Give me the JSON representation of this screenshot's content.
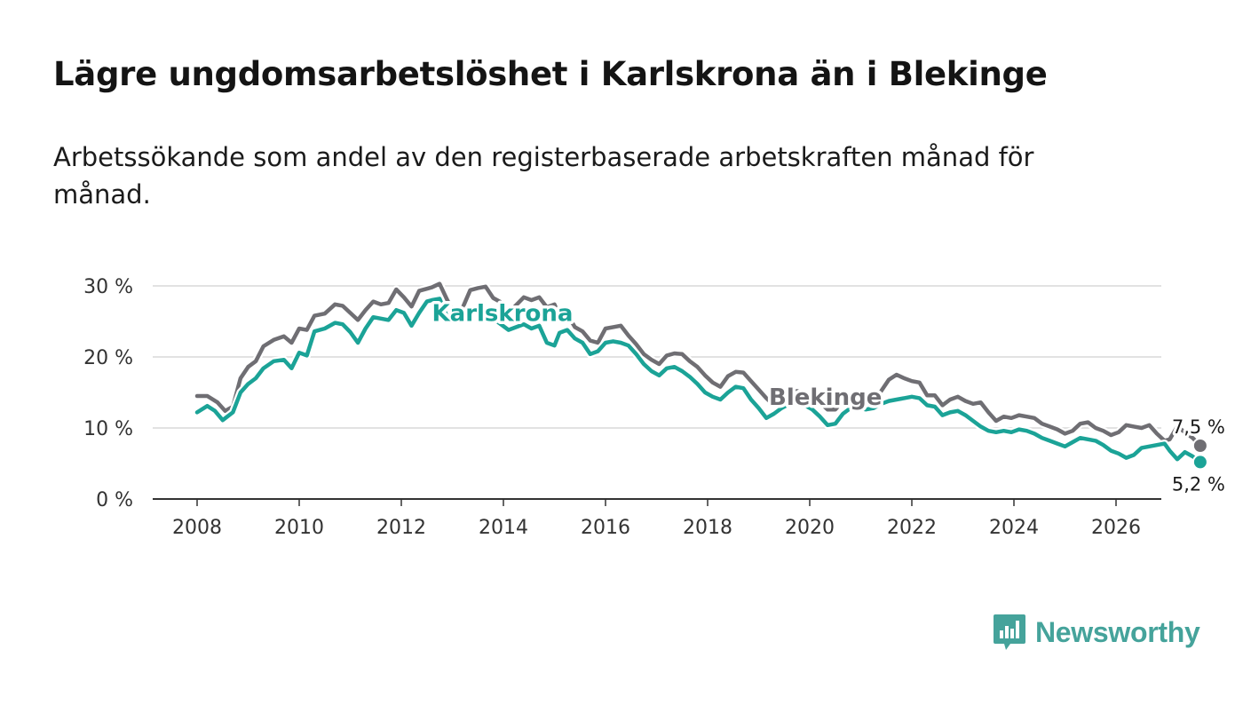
{
  "title": "Lägre ungdomsarbetslöshet i Karlskrona än i Blekinge",
  "subtitle": "Arbetssökande som andel av den registerbaserade arbetskraften månad för månad.",
  "brand": {
    "name": "Newsworthy",
    "icon": "newsworthy-logo-icon",
    "color": "#45a39b"
  },
  "chart_data": {
    "type": "line",
    "y_ticks": [
      "0 %",
      "10 %",
      "20 %",
      "30 %"
    ],
    "y_tick_values": [
      0,
      10,
      20,
      30
    ],
    "x_ticks": [
      "2008",
      "2010",
      "2012",
      "2014",
      "2016",
      "2018",
      "2020",
      "2022",
      "2024",
      "2026"
    ],
    "x_tick_values": [
      2008,
      2010,
      2012,
      2014,
      2016,
      2018,
      2020,
      2022,
      2024,
      2026
    ],
    "xlim": [
      2007.1,
      2027.1
    ],
    "ylim": [
      0,
      30
    ],
    "grid": true,
    "series": [
      {
        "name": "Blekinge",
        "color": "#6f6e73",
        "label": "Blekinge",
        "end_label": "7,5 %",
        "points": [
          [
            2008.0,
            14.5
          ],
          [
            2008.2,
            14.5
          ],
          [
            2008.4,
            13.6
          ],
          [
            2008.55,
            12.4
          ],
          [
            2008.7,
            13.0
          ],
          [
            2008.85,
            17.0
          ],
          [
            2009.0,
            18.6
          ],
          [
            2009.15,
            19.4
          ],
          [
            2009.3,
            21.5
          ],
          [
            2009.5,
            22.4
          ],
          [
            2009.7,
            22.9
          ],
          [
            2009.85,
            22.0
          ],
          [
            2010.0,
            24.0
          ],
          [
            2010.15,
            23.8
          ],
          [
            2010.3,
            25.8
          ],
          [
            2010.5,
            26.1
          ],
          [
            2010.7,
            27.4
          ],
          [
            2010.85,
            27.2
          ],
          [
            2011.0,
            26.2
          ],
          [
            2011.15,
            25.2
          ],
          [
            2011.3,
            26.6
          ],
          [
            2011.45,
            27.8
          ],
          [
            2011.6,
            27.4
          ],
          [
            2011.75,
            27.6
          ],
          [
            2011.9,
            29.5
          ],
          [
            2012.05,
            28.4
          ],
          [
            2012.2,
            27.1
          ],
          [
            2012.35,
            29.3
          ],
          [
            2012.5,
            29.6
          ],
          [
            2012.6,
            29.8
          ],
          [
            2012.75,
            30.3
          ],
          [
            2012.9,
            28.0
          ],
          [
            2013.05,
            26.0
          ],
          [
            2013.2,
            26.9
          ],
          [
            2013.35,
            29.4
          ],
          [
            2013.5,
            29.7
          ],
          [
            2013.65,
            29.9
          ],
          [
            2013.8,
            28.3
          ],
          [
            2013.95,
            27.7
          ],
          [
            2014.1,
            26.2
          ],
          [
            2014.25,
            27.3
          ],
          [
            2014.4,
            28.4
          ],
          [
            2014.55,
            28.0
          ],
          [
            2014.7,
            28.4
          ],
          [
            2014.85,
            27.0
          ],
          [
            2015.0,
            27.4
          ],
          [
            2015.1,
            25.7
          ],
          [
            2015.25,
            26.0
          ],
          [
            2015.4,
            24.2
          ],
          [
            2015.55,
            23.6
          ],
          [
            2015.7,
            22.3
          ],
          [
            2015.85,
            22.0
          ],
          [
            2016.0,
            24.0
          ],
          [
            2016.15,
            24.2
          ],
          [
            2016.3,
            24.4
          ],
          [
            2016.45,
            23.0
          ],
          [
            2016.6,
            21.8
          ],
          [
            2016.75,
            20.4
          ],
          [
            2016.9,
            19.6
          ],
          [
            2017.05,
            19.0
          ],
          [
            2017.2,
            20.2
          ],
          [
            2017.35,
            20.5
          ],
          [
            2017.5,
            20.4
          ],
          [
            2017.65,
            19.4
          ],
          [
            2017.8,
            18.6
          ],
          [
            2017.95,
            17.4
          ],
          [
            2018.1,
            16.4
          ],
          [
            2018.25,
            15.8
          ],
          [
            2018.4,
            17.3
          ],
          [
            2018.55,
            17.9
          ],
          [
            2018.7,
            17.8
          ],
          [
            2018.85,
            16.6
          ],
          [
            2019.0,
            15.4
          ],
          [
            2019.15,
            14.2
          ],
          [
            2019.3,
            13.2
          ],
          [
            2019.45,
            14.1
          ],
          [
            2019.6,
            15.0
          ],
          [
            2019.75,
            15.2
          ],
          [
            2019.9,
            14.8
          ],
          [
            2020.05,
            14.4
          ],
          [
            2020.2,
            13.6
          ],
          [
            2020.35,
            12.6
          ],
          [
            2020.5,
            12.6
          ],
          [
            2020.65,
            13.8
          ],
          [
            2020.8,
            14.6
          ],
          [
            2020.95,
            14.4
          ],
          [
            2021.1,
            14.6
          ],
          [
            2021.25,
            14.0
          ],
          [
            2021.4,
            15.2
          ],
          [
            2021.55,
            16.8
          ],
          [
            2021.7,
            17.5
          ],
          [
            2021.85,
            17.0
          ],
          [
            2022.0,
            16.6
          ],
          [
            2022.15,
            16.4
          ],
          [
            2022.3,
            14.6
          ],
          [
            2022.45,
            14.6
          ],
          [
            2022.6,
            13.2
          ],
          [
            2022.75,
            14.0
          ],
          [
            2022.9,
            14.4
          ],
          [
            2023.05,
            13.8
          ],
          [
            2023.2,
            13.4
          ],
          [
            2023.35,
            13.6
          ],
          [
            2023.5,
            12.2
          ],
          [
            2023.65,
            11.0
          ],
          [
            2023.8,
            11.6
          ],
          [
            2023.95,
            11.4
          ],
          [
            2024.1,
            11.8
          ],
          [
            2024.25,
            11.6
          ],
          [
            2024.4,
            11.4
          ],
          [
            2024.55,
            10.6
          ],
          [
            2024.7,
            10.2
          ],
          [
            2024.85,
            9.8
          ],
          [
            2025.0,
            9.2
          ],
          [
            2025.15,
            9.6
          ],
          [
            2025.3,
            10.6
          ],
          [
            2025.45,
            10.8
          ],
          [
            2025.6,
            10.0
          ],
          [
            2025.75,
            9.6
          ],
          [
            2025.9,
            9.0
          ],
          [
            2026.05,
            9.4
          ],
          [
            2026.2,
            10.4
          ],
          [
            2026.35,
            10.2
          ],
          [
            2026.5,
            10.0
          ],
          [
            2026.65,
            10.4
          ],
          [
            2026.8,
            9.2
          ],
          [
            2026.95,
            8.2
          ],
          [
            2027.05,
            8.4
          ],
          [
            2027.2,
            10.2
          ],
          [
            2027.35,
            9.4
          ],
          [
            2027.5,
            8.6
          ],
          [
            2027.65,
            7.5
          ]
        ]
      },
      {
        "name": "Karlskrona",
        "color": "#1ba397",
        "label": "Karlskrona",
        "end_label": "5,2 %",
        "points": [
          [
            2008.0,
            12.2
          ],
          [
            2008.2,
            13.1
          ],
          [
            2008.35,
            12.4
          ],
          [
            2008.5,
            11.1
          ],
          [
            2008.7,
            12.2
          ],
          [
            2008.85,
            15.0
          ],
          [
            2009.0,
            16.2
          ],
          [
            2009.15,
            17.0
          ],
          [
            2009.3,
            18.4
          ],
          [
            2009.5,
            19.4
          ],
          [
            2009.7,
            19.6
          ],
          [
            2009.85,
            18.4
          ],
          [
            2010.0,
            20.6
          ],
          [
            2010.15,
            20.2
          ],
          [
            2010.3,
            23.6
          ],
          [
            2010.5,
            24.0
          ],
          [
            2010.7,
            24.8
          ],
          [
            2010.85,
            24.6
          ],
          [
            2011.0,
            23.5
          ],
          [
            2011.15,
            22.0
          ],
          [
            2011.3,
            24.0
          ],
          [
            2011.45,
            25.6
          ],
          [
            2011.6,
            25.4
          ],
          [
            2011.75,
            25.2
          ],
          [
            2011.9,
            26.6
          ],
          [
            2012.05,
            26.2
          ],
          [
            2012.2,
            24.4
          ],
          [
            2012.35,
            26.2
          ],
          [
            2012.5,
            27.8
          ],
          [
            2012.6,
            28.0
          ],
          [
            2012.75,
            28.2
          ],
          [
            2012.9,
            25.6
          ],
          [
            2013.05,
            25.0
          ],
          [
            2013.2,
            25.6
          ],
          [
            2013.35,
            26.4
          ],
          [
            2013.5,
            26.6
          ],
          [
            2013.65,
            26.0
          ],
          [
            2013.8,
            25.4
          ],
          [
            2013.95,
            24.6
          ],
          [
            2014.1,
            23.8
          ],
          [
            2014.25,
            24.2
          ],
          [
            2014.4,
            24.6
          ],
          [
            2014.55,
            24.0
          ],
          [
            2014.7,
            24.4
          ],
          [
            2014.85,
            22.0
          ],
          [
            2015.0,
            21.6
          ],
          [
            2015.1,
            23.4
          ],
          [
            2015.25,
            23.8
          ],
          [
            2015.4,
            22.6
          ],
          [
            2015.55,
            22.0
          ],
          [
            2015.7,
            20.4
          ],
          [
            2015.85,
            20.8
          ],
          [
            2016.0,
            22.0
          ],
          [
            2016.15,
            22.2
          ],
          [
            2016.3,
            22.0
          ],
          [
            2016.45,
            21.6
          ],
          [
            2016.6,
            20.4
          ],
          [
            2016.75,
            19.0
          ],
          [
            2016.9,
            18.0
          ],
          [
            2017.05,
            17.4
          ],
          [
            2017.2,
            18.4
          ],
          [
            2017.35,
            18.6
          ],
          [
            2017.5,
            18.0
          ],
          [
            2017.65,
            17.2
          ],
          [
            2017.8,
            16.2
          ],
          [
            2017.95,
            15.0
          ],
          [
            2018.1,
            14.4
          ],
          [
            2018.25,
            14.0
          ],
          [
            2018.4,
            15.0
          ],
          [
            2018.55,
            15.8
          ],
          [
            2018.7,
            15.6
          ],
          [
            2018.85,
            14.0
          ],
          [
            2019.0,
            12.8
          ],
          [
            2019.15,
            11.4
          ],
          [
            2019.3,
            12.0
          ],
          [
            2019.45,
            12.8
          ],
          [
            2019.6,
            13.4
          ],
          [
            2019.75,
            13.6
          ],
          [
            2019.9,
            13.2
          ],
          [
            2020.05,
            12.6
          ],
          [
            2020.2,
            11.6
          ],
          [
            2020.35,
            10.4
          ],
          [
            2020.5,
            10.6
          ],
          [
            2020.65,
            12.0
          ],
          [
            2020.8,
            12.8
          ],
          [
            2020.95,
            12.8
          ],
          [
            2021.1,
            12.6
          ],
          [
            2021.25,
            12.8
          ],
          [
            2021.4,
            13.4
          ],
          [
            2021.55,
            13.8
          ],
          [
            2021.7,
            14.0
          ],
          [
            2021.85,
            14.2
          ],
          [
            2022.0,
            14.4
          ],
          [
            2022.15,
            14.2
          ],
          [
            2022.3,
            13.2
          ],
          [
            2022.45,
            13.0
          ],
          [
            2022.6,
            11.8
          ],
          [
            2022.75,
            12.2
          ],
          [
            2022.9,
            12.4
          ],
          [
            2023.05,
            11.8
          ],
          [
            2023.2,
            11.0
          ],
          [
            2023.35,
            10.2
          ],
          [
            2023.5,
            9.6
          ],
          [
            2023.65,
            9.4
          ],
          [
            2023.8,
            9.6
          ],
          [
            2023.95,
            9.4
          ],
          [
            2024.1,
            9.8
          ],
          [
            2024.25,
            9.6
          ],
          [
            2024.4,
            9.2
          ],
          [
            2024.55,
            8.6
          ],
          [
            2024.7,
            8.2
          ],
          [
            2024.85,
            7.8
          ],
          [
            2025.0,
            7.4
          ],
          [
            2025.15,
            8.0
          ],
          [
            2025.3,
            8.6
          ],
          [
            2025.45,
            8.4
          ],
          [
            2025.6,
            8.2
          ],
          [
            2025.75,
            7.6
          ],
          [
            2025.9,
            6.8
          ],
          [
            2026.05,
            6.4
          ],
          [
            2026.2,
            5.8
          ],
          [
            2026.35,
            6.2
          ],
          [
            2026.5,
            7.2
          ],
          [
            2026.65,
            7.4
          ],
          [
            2026.8,
            7.6
          ],
          [
            2026.95,
            7.8
          ],
          [
            2027.05,
            6.8
          ],
          [
            2027.2,
            5.6
          ],
          [
            2027.35,
            6.6
          ],
          [
            2027.5,
            6.0
          ],
          [
            2027.65,
            5.2
          ]
        ]
      }
    ]
  }
}
